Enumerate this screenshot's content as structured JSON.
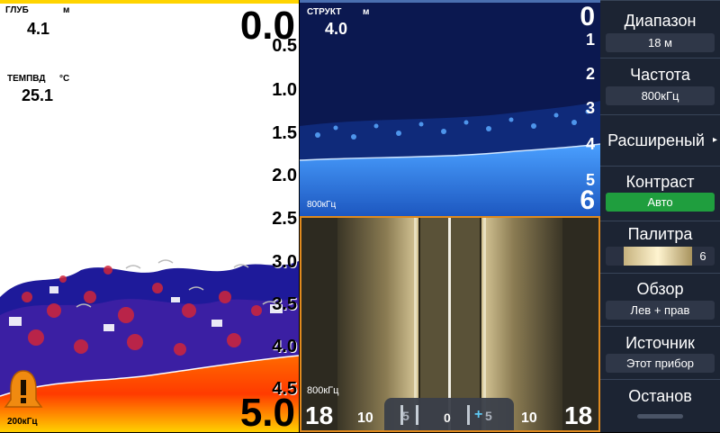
{
  "sonar": {
    "depth_label": "ГЛУБ",
    "depth_unit": "м",
    "depth_value": "4.1",
    "temp_label": "ТЕМПВД",
    "temp_unit": "°C",
    "temp_value": "25.1",
    "range_top": "0.0",
    "range_bottom": "5.0",
    "scale": [
      "0.5",
      "1.0",
      "1.5",
      "2.0",
      "2.5",
      "3.0",
      "3.5",
      "4.0",
      "4.5"
    ],
    "freq": "200кГц"
  },
  "structure": {
    "label": "СТРУКТ",
    "unit": "м",
    "depth_value": "4.0",
    "scale": [
      "0",
      "1",
      "2",
      "3",
      "4",
      "5",
      "6"
    ],
    "freq": "800кГц"
  },
  "sidescan": {
    "freq": "800кГц",
    "left_range": "18",
    "right_range": "18",
    "left_mid": "10",
    "right_mid": "10",
    "center": "0",
    "left_tick": "5",
    "right_tick": "5"
  },
  "menu": {
    "range_title": "Диапазон",
    "range_value": "18 м",
    "freq_title": "Частота",
    "freq_value": "800кГц",
    "advanced_title": "Расширеный",
    "contrast_title": "Контраст",
    "contrast_value": "Авто",
    "palette_title": "Палитра",
    "palette_value": "6",
    "view_title": "Обзор",
    "view_value": "Лев + прав",
    "source_title": "Источник",
    "source_value": "Этот прибор",
    "stop_title": "Останов"
  },
  "colors": {
    "accent": "#e08a1e",
    "contrast_green": "#1f9e3e",
    "menu_bg": "#1c2433"
  }
}
